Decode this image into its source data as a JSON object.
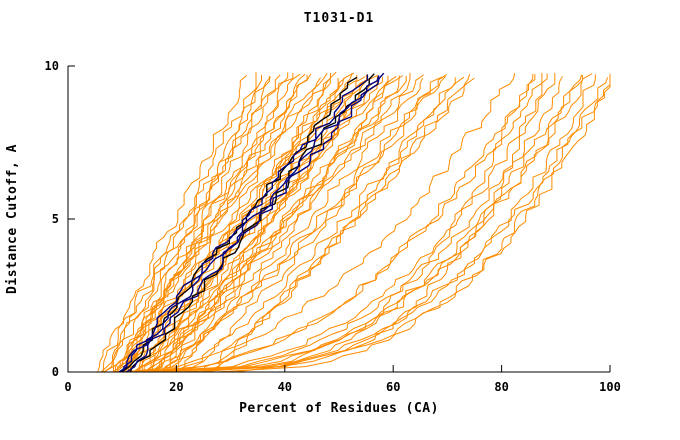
{
  "chart_data": {
    "type": "line",
    "title": "T1031-D1",
    "xlabel": "Percent of Residues (CA)",
    "ylabel": "Distance Cutoff, A",
    "xlim": [
      0,
      100
    ],
    "ylim": [
      0,
      10
    ],
    "x_ticks": [
      0,
      20,
      40,
      60,
      80,
      100
    ],
    "y_ticks": [
      0,
      5,
      10
    ],
    "grid": false,
    "legend": "none",
    "curve_y_max": 9.7,
    "colors": {
      "model_lines": "#ff8c00",
      "highlight_navy": "#000080",
      "highlight_black": "#000000",
      "axis": "#000000"
    },
    "curve_format": "[x_percent_at_cutoff_0, x_percent_at_cutoff_max, shape_exponent]",
    "model_curves": [
      [
        5,
        33,
        1.0
      ],
      [
        6,
        35,
        0.95
      ],
      [
        6,
        37,
        1.05
      ],
      [
        7,
        38,
        1.0
      ],
      [
        7,
        40,
        1.1
      ],
      [
        8,
        36,
        0.9
      ],
      [
        8,
        42,
        1.0
      ],
      [
        9,
        44,
        1.05
      ],
      [
        9,
        39,
        0.95
      ],
      [
        10,
        41,
        1.0
      ],
      [
        10,
        45,
        1.1
      ],
      [
        11,
        43,
        0.95
      ],
      [
        8,
        46,
        1.0
      ],
      [
        9,
        48,
        1.1
      ],
      [
        10,
        50,
        0.95
      ],
      [
        10,
        52,
        1.05
      ],
      [
        11,
        47,
        1.0
      ],
      [
        11,
        54,
        1.1
      ],
      [
        12,
        49,
        0.9
      ],
      [
        12,
        55,
        1.0
      ],
      [
        13,
        51,
        1.05
      ],
      [
        13,
        57,
        0.95
      ],
      [
        14,
        53,
        1.0
      ],
      [
        14,
        58,
        1.1
      ],
      [
        15,
        50,
        1.0
      ],
      [
        15,
        56,
        0.9
      ],
      [
        16,
        59,
        1.05
      ],
      [
        16,
        52,
        1.0
      ],
      [
        17,
        60,
        0.95
      ],
      [
        18,
        55,
        1.0
      ],
      [
        18,
        58,
        1.1
      ],
      [
        19,
        61,
        1.0
      ],
      [
        12,
        62,
        0.85
      ],
      [
        14,
        65,
        0.9
      ],
      [
        15,
        68,
        0.8
      ],
      [
        16,
        63,
        1.0
      ],
      [
        17,
        70,
        0.85
      ],
      [
        18,
        66,
        0.9
      ],
      [
        20,
        72,
        0.8
      ],
      [
        20,
        64,
        1.0
      ],
      [
        22,
        69,
        0.9
      ],
      [
        24,
        74,
        0.85
      ],
      [
        25,
        71,
        0.8
      ],
      [
        26,
        75,
        0.9
      ],
      [
        10,
        82,
        0.5
      ],
      [
        12,
        86,
        0.45
      ],
      [
        14,
        90,
        0.4
      ],
      [
        15,
        95,
        0.38
      ],
      [
        16,
        88,
        0.5
      ],
      [
        18,
        92,
        0.42
      ],
      [
        20,
        97,
        0.35
      ],
      [
        22,
        100,
        0.4
      ],
      [
        25,
        94,
        0.45
      ],
      [
        28,
        99,
        0.38
      ],
      [
        30,
        96,
        0.5
      ],
      [
        12,
        100,
        0.3
      ],
      [
        8,
        85,
        0.28
      ],
      [
        10,
        88,
        0.25
      ]
    ],
    "highlight_curves_navy": [
      [
        10,
        57,
        1.02
      ],
      [
        11,
        58,
        1.0
      ],
      [
        10,
        55,
        1.05
      ]
    ],
    "highlight_curves_black": [
      [
        10,
        53,
        1.0
      ],
      [
        12,
        56,
        0.98
      ]
    ]
  }
}
